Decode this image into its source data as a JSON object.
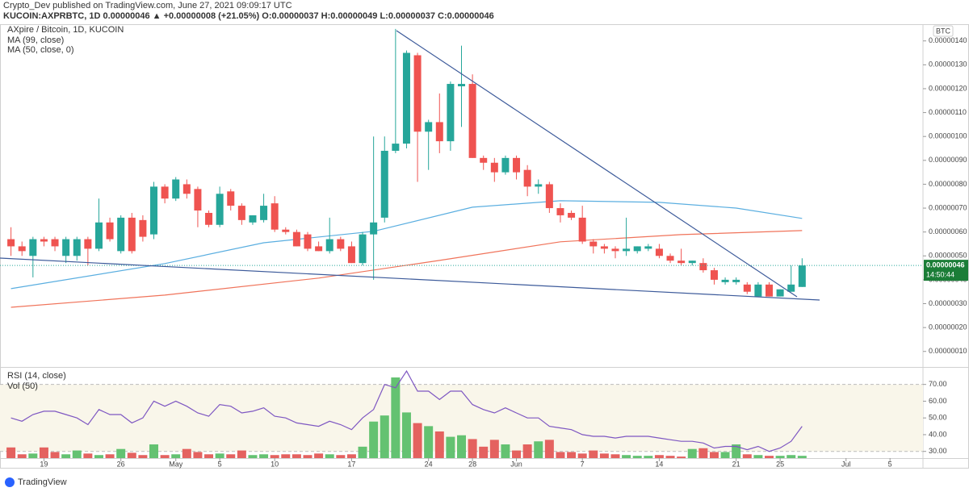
{
  "header": {
    "publisher": "Crypto_Dev published on TradingView.com, June 27, 2021 09:09:17 UTC",
    "quote": "KUCOIN:AXPRBTC, 1D  0.00000046 ▲ +0.00000008 (+21.05%) O:0.00000037 H:0.00000049 L:0.00000037 C:0.00000046"
  },
  "footer": {
    "brand": "TradingView"
  },
  "chart_data": {
    "type": "candlestick",
    "title": "AXpire / Bitcoin, 1D, KUCOIN",
    "currency": "BTC",
    "up_color": "#26a69a",
    "down_color": "#ef5350",
    "x": [
      "2021-04-16",
      "2021-04-17",
      "2021-04-18",
      "2021-04-19",
      "2021-04-20",
      "2021-04-21",
      "2021-04-22",
      "2021-04-23",
      "2021-04-24",
      "2021-04-25",
      "2021-04-26",
      "2021-04-27",
      "2021-04-28",
      "2021-04-29",
      "2021-04-30",
      "2021-05-01",
      "2021-05-02",
      "2021-05-03",
      "2021-05-04",
      "2021-05-05",
      "2021-05-06",
      "2021-05-07",
      "2021-05-08",
      "2021-05-09",
      "2021-05-10",
      "2021-05-11",
      "2021-05-12",
      "2021-05-13",
      "2021-05-14",
      "2021-05-15",
      "2021-05-16",
      "2021-05-17",
      "2021-05-18",
      "2021-05-19",
      "2021-05-20",
      "2021-05-21",
      "2021-05-22",
      "2021-05-23",
      "2021-05-24",
      "2021-05-25",
      "2021-05-26",
      "2021-05-27",
      "2021-05-28",
      "2021-05-29",
      "2021-05-30",
      "2021-05-31",
      "2021-06-01",
      "2021-06-02",
      "2021-06-03",
      "2021-06-04",
      "2021-06-05",
      "2021-06-06",
      "2021-06-07",
      "2021-06-08",
      "2021-06-09",
      "2021-06-10",
      "2021-06-11",
      "2021-06-12",
      "2021-06-13",
      "2021-06-14",
      "2021-06-15",
      "2021-06-16",
      "2021-06-17",
      "2021-06-18",
      "2021-06-19",
      "2021-06-20",
      "2021-06-21",
      "2021-06-22",
      "2021-06-23",
      "2021-06-24",
      "2021-06-25",
      "2021-06-26",
      "2021-06-27"
    ],
    "open": [
      5.7e-07,
      5.4e-07,
      5e-07,
      5.7e-07,
      5.7e-07,
      5e-07,
      5e-07,
      5.7e-07,
      5.3e-07,
      6.4e-07,
      5.2e-07,
      6.6e-07,
      6.5e-07,
      5.9e-07,
      7.9e-07,
      7.4e-07,
      8e-07,
      7.8e-07,
      6.8e-07,
      6.3e-07,
      7.7e-07,
      7.1e-07,
      6.4e-07,
      6.5e-07,
      7.2e-07,
      6.1e-07,
      6e-07,
      5.9e-07,
      5.4e-07,
      5.2e-07,
      5.7e-07,
      5.4e-07,
      4.7e-07,
      5.9e-07,
      6.6e-07,
      9.4e-07,
      9.7e-07,
      1.34e-06,
      1.02e-06,
      1.06e-06,
      9.8e-07,
      1.21e-06,
      1.22e-06,
      9.1e-07,
      8.9e-07,
      8.5e-07,
      9.1e-07,
      8.6e-07,
      7.9e-07,
      8e-07,
      7e-07,
      6.8e-07,
      6.6e-07,
      5.6e-07,
      5.4e-07,
      5.3e-07,
      5.2e-07,
      5.2e-07,
      5.3e-07,
      5.3e-07,
      5e-07,
      4.8e-07,
      4.7e-07,
      4.7e-07,
      4.4e-07,
      3.9e-07,
      3.9e-07,
      3.8e-07,
      3.3e-07,
      3.8e-07,
      3.3e-07,
      3.5e-07,
      3.7e-07
    ],
    "high": [
      6.2e-07,
      5.6e-07,
      5.8e-07,
      5.8e-07,
      5.8e-07,
      5.8e-07,
      5.8e-07,
      5.8e-07,
      7.4e-07,
      6.6e-07,
      6.7e-07,
      6.8e-07,
      6.7e-07,
      8.1e-07,
      8e-07,
      8.3e-07,
      8.2e-07,
      7.9e-07,
      6.9e-07,
      7.9e-07,
      7.8e-07,
      7.2e-07,
      6.7e-07,
      7.6e-07,
      7.5e-07,
      6.2e-07,
      6.1e-07,
      6e-07,
      5.6e-07,
      6.6e-07,
      5.8e-07,
      5.6e-07,
      6e-07,
      1e-06,
      1e-06,
      1.45e-06,
      1.36e-06,
      1.35e-06,
      1.07e-06,
      1.18e-06,
      1.23e-06,
      1.38e-06,
      1.26e-06,
      9.2e-07,
      9.1e-07,
      9.2e-07,
      9.2e-07,
      8.8e-07,
      8.2e-07,
      8.1e-07,
      7.2e-07,
      6.9e-07,
      7.1e-07,
      5.7e-07,
      5.5e-07,
      5.4e-07,
      6.6e-07,
      5.4e-07,
      5.5e-07,
      5.5e-07,
      5.1e-07,
      5.3e-07,
      4.8e-07,
      4.9e-07,
      4.5e-07,
      4.1e-07,
      4.1e-07,
      3.9e-07,
      3.9e-07,
      3.9e-07,
      3.6e-07,
      4.6e-07,
      4.9e-07
    ],
    "low": [
      5e-07,
      5e-07,
      4.1e-07,
      5.4e-07,
      5.2e-07,
      4.7e-07,
      4.8e-07,
      4.6e-07,
      5.2e-07,
      5.6e-07,
      5.1e-07,
      5.1e-07,
      5.6e-07,
      5.7e-07,
      7.2e-07,
      7.3e-07,
      7.4e-07,
      6.2e-07,
      6.2e-07,
      6.2e-07,
      6.9e-07,
      6.3e-07,
      6.3e-07,
      6.4e-07,
      6e-07,
      5.9e-07,
      5.4e-07,
      5.2e-07,
      5.2e-07,
      5.1e-07,
      5.2e-07,
      4.7e-07,
      4.6e-07,
      4e-07,
      6.4e-07,
      9.3e-07,
      9.5e-07,
      8.1e-07,
      8.6e-07,
      9.3e-07,
      9.4e-07,
      1.04e-06,
      9.1e-07,
      8.6e-07,
      8.1e-07,
      8.4e-07,
      8.2e-07,
      7.5e-07,
      7.6e-07,
      6.8e-07,
      6.4e-07,
      6.5e-07,
      5.5e-07,
      5.1e-07,
      5.1e-07,
      4.9e-07,
      5e-07,
      5.1e-07,
      5.2e-07,
      4.9e-07,
      4.7e-07,
      4.6e-07,
      4.6e-07,
      4.3e-07,
      3.8e-07,
      3.8e-07,
      3.8e-07,
      3.4e-07,
      3.3e-07,
      3.3e-07,
      3.3e-07,
      3.5e-07,
      3.7e-07
    ],
    "close": [
      5.4e-07,
      5.2e-07,
      5.7e-07,
      5.6e-07,
      5.4e-07,
      5.7e-07,
      5.7e-07,
      5.3e-07,
      6.4e-07,
      5.7e-07,
      6.6e-07,
      5.2e-07,
      5.8e-07,
      7.9e-07,
      7.4e-07,
      8.2e-07,
      7.6e-07,
      6.9e-07,
      6.3e-07,
      7.6e-07,
      7.1e-07,
      6.5e-07,
      6.7e-07,
      7.1e-07,
      6.1e-07,
      6e-07,
      5.4e-07,
      5.3e-07,
      5.2e-07,
      5.7e-07,
      5.3e-07,
      4.7e-07,
      5.9e-07,
      6.4e-07,
      9.4e-07,
      9.7e-07,
      1.35e-06,
      1.02e-06,
      1.06e-06,
      9.8e-07,
      1.22e-06,
      1.22e-06,
      9.1e-07,
      8.9e-07,
      8.5e-07,
      9.1e-07,
      8.5e-07,
      7.9e-07,
      8e-07,
      7e-07,
      6.7e-07,
      6.6e-07,
      5.6e-07,
      5.4e-07,
      5.3e-07,
      5.2e-07,
      5.3e-07,
      5.4e-07,
      5.4e-07,
      5e-07,
      4.8e-07,
      4.7e-07,
      4.8e-07,
      4.4e-07,
      4e-07,
      4e-07,
      4e-07,
      3.5e-07,
      3.8e-07,
      3.3e-07,
      3.6e-07,
      3.8e-07,
      4.6e-07
    ],
    "ylim": [
      3.5e-08,
      1.47e-06
    ],
    "yticks": [
      {
        "value": 1e-07,
        "label": "0.00000010"
      },
      {
        "value": 2e-07,
        "label": "0.00000020"
      },
      {
        "value": 3e-07,
        "label": "0.00000030"
      },
      {
        "value": 4e-07,
        "label": "0.00000040"
      },
      {
        "value": 5e-07,
        "label": "0.00000050"
      },
      {
        "value": 6e-07,
        "label": "0.00000060"
      },
      {
        "value": 7e-07,
        "label": "0.00000070"
      },
      {
        "value": 8e-07,
        "label": "0.00000080"
      },
      {
        "value": 9e-07,
        "label": "0.00000090"
      },
      {
        "value": 1e-06,
        "label": "0.00000100"
      },
      {
        "value": 1.1e-06,
        "label": "0.00000110"
      },
      {
        "value": 1.2e-06,
        "label": "0.00000120"
      },
      {
        "value": 1.3e-06,
        "label": "0.00000130"
      },
      {
        "value": 1.4e-06,
        "label": "0.00000140"
      }
    ],
    "xlim": [
      "2021-04-15",
      "2021-07-08"
    ],
    "xticks": [
      {
        "value": "2021-04-19",
        "label": "19"
      },
      {
        "value": "2021-04-26",
        "label": "26"
      },
      {
        "value": "2021-05-01",
        "label": "May"
      },
      {
        "value": "2021-05-05",
        "label": "5"
      },
      {
        "value": "2021-05-10",
        "label": "10"
      },
      {
        "value": "2021-05-17",
        "label": "17"
      },
      {
        "value": "2021-05-24",
        "label": "24"
      },
      {
        "value": "2021-05-28",
        "label": "28"
      },
      {
        "value": "2021-06-01",
        "label": "Jun"
      },
      {
        "value": "2021-06-07",
        "label": "7"
      },
      {
        "value": "2021-06-14",
        "label": "14"
      },
      {
        "value": "2021-06-21",
        "label": "21"
      },
      {
        "value": "2021-06-25",
        "label": "25"
      },
      {
        "value": "2021-07-01",
        "label": "Jul"
      },
      {
        "value": "2021-07-05",
        "label": "5"
      }
    ],
    "ma": [
      {
        "name": "MA (99, close)",
        "color": "#f0735a",
        "x": [
          "2021-04-16",
          "2021-04-30",
          "2021-05-14",
          "2021-05-25",
          "2021-06-05",
          "2021-06-16",
          "2021-06-27"
        ],
        "values": [
          2.85e-07,
          3.36e-07,
          4.07e-07,
          4.81e-07,
          5.59e-07,
          5.89e-07,
          6.06e-07
        ]
      },
      {
        "name": "MA (50, close, 0)",
        "color": "#5aaee0",
        "x": [
          "2021-04-16",
          "2021-04-30",
          "2021-05-09",
          "2021-05-19",
          "2021-05-28",
          "2021-06-05",
          "2021-06-14",
          "2021-06-21",
          "2021-06-27"
        ],
        "values": [
          3.63e-07,
          4.68e-07,
          5.55e-07,
          6.03e-07,
          7.04e-07,
          7.31e-07,
          7.24e-07,
          7e-07,
          6.57e-07
        ]
      }
    ],
    "last_price_label": "0.00000046",
    "countdown": "14:50:44",
    "rsi": {
      "name": "RSI (14, close)",
      "color": "#7e57c2",
      "values": [
        50,
        48,
        52,
        54,
        54,
        52,
        50,
        46,
        55,
        52,
        52,
        47,
        50,
        60,
        57,
        60,
        57,
        53,
        51,
        58,
        57,
        53,
        54,
        56,
        51,
        50,
        47,
        46,
        45,
        48,
        46,
        43,
        50,
        55,
        70,
        68,
        78,
        66,
        66,
        61,
        66,
        66,
        58,
        55,
        53,
        56,
        53,
        50,
        50,
        45,
        44,
        43,
        40,
        39,
        39,
        38,
        39,
        39,
        39,
        38,
        37,
        36,
        36,
        35,
        32,
        33,
        33,
        31,
        33,
        30,
        32,
        36,
        45
      ],
      "ylim": [
        26,
        79
      ],
      "yticks": [
        {
          "value": 30,
          "label": "30.00"
        },
        {
          "value": 40,
          "label": "40.00"
        },
        {
          "value": 50,
          "label": "50.00"
        },
        {
          "value": 60,
          "label": "60.00"
        },
        {
          "value": 70,
          "label": "70.00"
        }
      ]
    },
    "volume": {
      "name": "Vol (50)",
      "values": [
        14,
        5,
        6,
        14,
        8,
        5,
        10,
        6,
        4,
        5,
        12,
        7,
        4,
        18,
        4,
        5,
        12,
        8,
        5,
        6,
        5,
        10,
        4,
        5,
        4,
        5,
        5,
        4,
        6,
        5,
        4,
        5,
        15,
        48,
        56,
        106,
        60,
        46,
        42,
        35,
        28,
        30,
        25,
        15,
        24,
        18,
        10,
        18,
        22,
        24,
        8,
        8,
        6,
        10,
        6,
        5,
        4,
        3,
        3,
        4,
        3,
        2,
        12,
        13,
        8,
        8,
        18,
        5,
        4,
        3,
        3,
        4,
        3
      ]
    }
  }
}
